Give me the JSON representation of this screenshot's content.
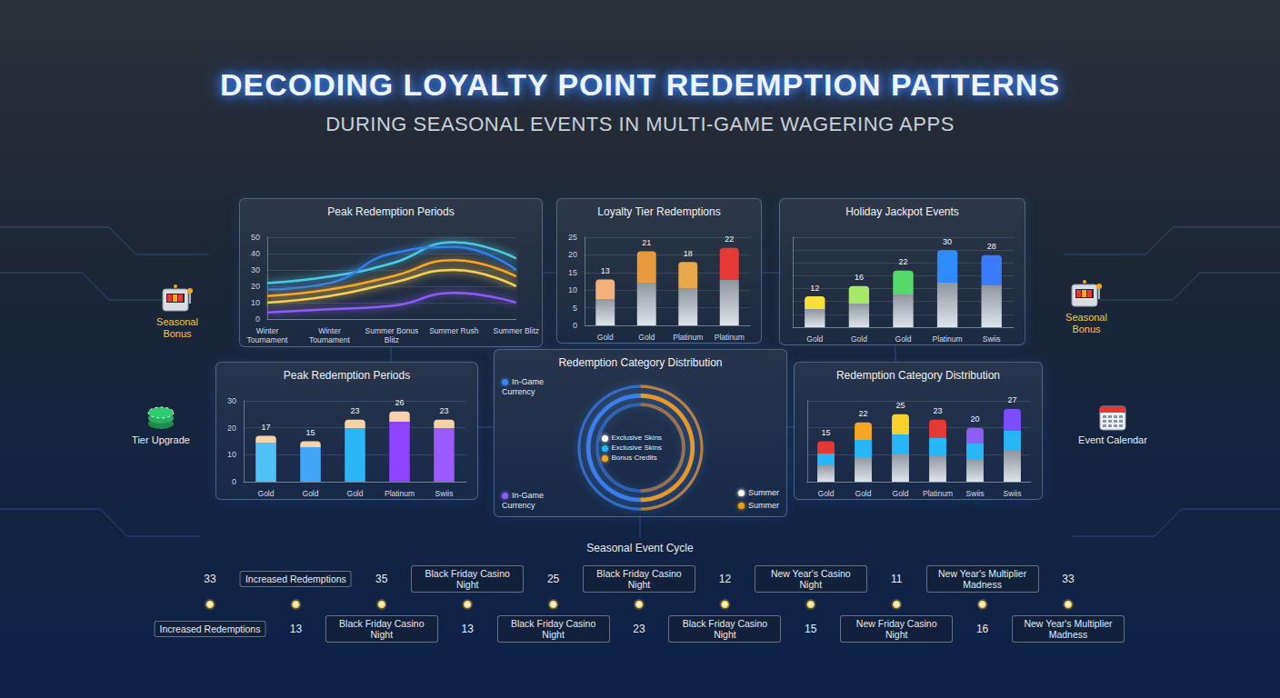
{
  "header": {
    "title": "DECODING LOYALTY POINT REDEMPTION PATTERNS",
    "subtitle": "DURING SEASONAL EVENTS IN MULTI-GAME WAGERING APPS"
  },
  "side_labels": [
    "Seasonal Bonus",
    "Tier Upgrade",
    "Seasonal Bonus",
    "Event Calendar"
  ],
  "chart_data": [
    {
      "type": "line",
      "title": "Peak Redemption Periods",
      "categories": [
        "Winter Tournament",
        "Winter Tournament",
        "Summer Bonus Blitz",
        "Summer Rush",
        "Summer Blitz"
      ],
      "series": [
        {
          "color": "#4dd0e1",
          "values": [
            22,
            26,
            34,
            47,
            37
          ]
        },
        {
          "color": "#2f80ed",
          "values": [
            18,
            22,
            40,
            44,
            30
          ]
        },
        {
          "color": "#f5a623",
          "values": [
            14,
            18,
            26,
            36,
            26
          ]
        },
        {
          "color": "#f7d154",
          "values": [
            10,
            14,
            22,
            30,
            20
          ]
        },
        {
          "color": "#8e5cf7",
          "values": [
            4,
            6,
            8,
            16,
            10
          ]
        }
      ],
      "ylim": [
        0,
        50
      ],
      "yticks": [
        0,
        10,
        20,
        30,
        40,
        50
      ],
      "grid": true
    },
    {
      "type": "bar",
      "title": "Loyalty Tier Redemptions",
      "categories": [
        "Gold",
        "Gold",
        "Platinum",
        "Platinum"
      ],
      "values": [
        13,
        21,
        18,
        22
      ],
      "colors": [
        "#f3b27a",
        "#e99a3c",
        "#e8a84c",
        "#e53935"
      ],
      "ylim": [
        0,
        25
      ],
      "yticks": [
        0,
        5,
        10,
        15,
        20,
        25
      ],
      "grid": true,
      "data_labels": true
    },
    {
      "type": "bar",
      "title": "Holiday Jackpot Events",
      "categories": [
        "Gold",
        "Gold",
        "Gold",
        "Platinum",
        "Swiis"
      ],
      "values": [
        12,
        16,
        22,
        30,
        28
      ],
      "colors": [
        "#f7e03c",
        "#a5e86a",
        "#54d96a",
        "#2f8cff",
        "#3a7bff"
      ],
      "ylim": [
        0,
        35
      ],
      "yticks": [
        0,
        5,
        10,
        15,
        20,
        25,
        30,
        35
      ],
      "tick_labels": "x",
      "grid": true,
      "data_labels": true
    },
    {
      "type": "bar",
      "title": "Peak Redemption Periods",
      "categories": [
        "Gold",
        "Gold",
        "Gold",
        "Platinum",
        "Swiis"
      ],
      "values": [
        17,
        15,
        23,
        26,
        23
      ],
      "colors": [
        "#4fc3f7",
        "#42a5f5",
        "#29b6f6",
        "#8e44ff",
        "#9b59ff"
      ],
      "ylim": [
        0,
        30
      ],
      "yticks": [
        0,
        10,
        20,
        30
      ],
      "grid": true,
      "data_labels": true
    },
    {
      "type": "pie",
      "title": "Redemption Category Distribution",
      "categories": [
        "In-Game Currency",
        "Summer"
      ],
      "values": [
        50,
        50
      ],
      "colors": [
        "#3b82f6",
        "#f59e0b"
      ],
      "annotations": [
        {
          "text": "Exclusive Skins",
          "color": "#ffffff"
        },
        {
          "text": "Exclusive Skins",
          "color": "#29b6f6"
        },
        {
          "text": "Bonus Credits",
          "color": "#f5a623"
        },
        {
          "text": "In-Game Currency",
          "color": "#8e5cf7"
        },
        {
          "text": "Summer",
          "color": "#ffffff"
        }
      ]
    },
    {
      "type": "bar",
      "title": "Redemption Category Distribution",
      "categories": [
        "Gold",
        "Gold",
        "Gold",
        "Platinum",
        "Swiis",
        "Swiis"
      ],
      "values": [
        15,
        22,
        25,
        23,
        20,
        27
      ],
      "colors": [
        "#e53935",
        "#f5a623",
        "#f7d12e",
        "#e53935",
        "#8e5cf7",
        "#7c4dff"
      ],
      "ylim": [
        0,
        30
      ],
      "yticks": [
        0,
        10,
        20,
        30
      ],
      "tick_labels": "x",
      "grid": true,
      "data_labels": true
    }
  ],
  "timeline": {
    "title": "Seasonal Event Cycle",
    "nodes": [
      {
        "label": "Increased Redemptions",
        "value": 33
      },
      {
        "label": "Increased Redemptions",
        "value": 13
      },
      {
        "label": "Black Friday Casino Night",
        "value": 35
      },
      {
        "label": "Black Friday Casino Night",
        "value": 13
      },
      {
        "label": "Black Friday Casino Night",
        "value": 25
      },
      {
        "label": "Black Friday Casino Night",
        "value": 23
      },
      {
        "label": "Black Friday Casino Night",
        "value": 12
      },
      {
        "label": "New Year's Casino Night",
        "value": 15
      },
      {
        "label": "New Friday Casino Night",
        "value": 11
      },
      {
        "label": "New Year's Multiplier Madness",
        "value": 16
      },
      {
        "label": "New Year's Multiplier Madness",
        "value": 33
      }
    ]
  }
}
